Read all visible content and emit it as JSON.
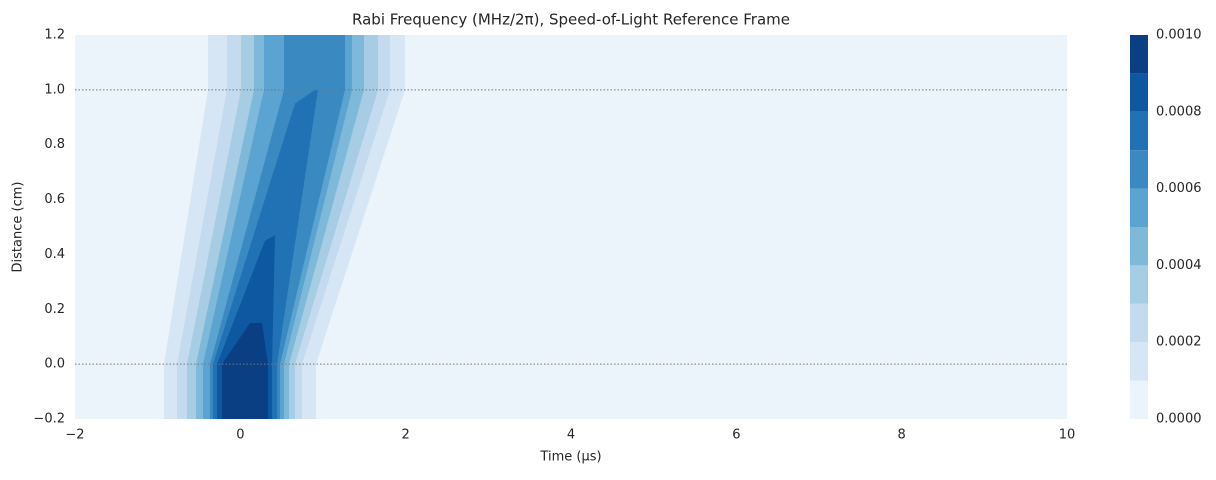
{
  "chart_data": {
    "type": "contour",
    "title": "Rabi Frequency (MHz/2π), Speed-of-Light Reference Frame",
    "xlabel": "Time (μs)",
    "ylabel": "Distance (cm)",
    "xlim": [
      -2,
      10
    ],
    "ylim": [
      -0.2,
      1.2
    ],
    "xticks": [
      {
        "value": -2,
        "label": "−2"
      },
      0,
      2,
      4,
      6,
      8,
      10
    ],
    "yticks": [
      {
        "value": -0.2,
        "label": "−0.2"
      },
      {
        "value": 0,
        "label": "0.0"
      },
      0.2,
      0.4,
      0.6,
      0.8,
      {
        "value": 1,
        "label": "1.0"
      },
      1.2
    ],
    "levels": [
      0,
      0.0001,
      0.0002,
      0.0003,
      0.0004,
      0.0005,
      0.0006,
      0.0007,
      0.0008,
      0.0009,
      0.001
    ],
    "colors": [
      "#ebf3fb",
      "#d6e6f4",
      "#c4daee",
      "#a6cde3",
      "#7fb9da",
      "#5ba3d0",
      "#3a8ac1",
      "#2171b5",
      "#0d58a1",
      "#0a3f84"
    ],
    "regions": [
      [
        [
          -0.923,
          -0.2
        ],
        [
          -0.923,
          0
        ],
        [
          -0.391,
          1
        ],
        [
          -0.391,
          1.2
        ],
        [
          1.992,
          1.2
        ],
        [
          1.992,
          1
        ],
        [
          0.915,
          0
        ],
        [
          0.915,
          -0.2
        ]
      ],
      [
        [
          -0.766,
          -0.2
        ],
        [
          -0.766,
          0
        ],
        [
          -0.161,
          1
        ],
        [
          -0.161,
          1.2
        ],
        [
          1.81,
          1.2
        ],
        [
          1.81,
          1
        ],
        [
          0.746,
          0
        ],
        [
          0.746,
          -0.2
        ]
      ],
      [
        [
          -0.645,
          -0.2
        ],
        [
          -0.645,
          0
        ],
        [
          0.008,
          1
        ],
        [
          0.008,
          1.2
        ],
        [
          1.665,
          1.2
        ],
        [
          1.665,
          1
        ],
        [
          0.661,
          0
        ],
        [
          0.661,
          -0.2
        ]
      ],
      [
        [
          -0.536,
          -0.2
        ],
        [
          -0.536,
          0
        ],
        [
          0.165,
          1
        ],
        [
          0.165,
          1.2
        ],
        [
          1.496,
          1.2
        ],
        [
          1.496,
          1
        ],
        [
          0.589,
          0
        ],
        [
          0.589,
          -0.2
        ]
      ],
      [
        [
          -0.452,
          -0.2
        ],
        [
          -0.452,
          0
        ],
        [
          0.286,
          1
        ],
        [
          0.286,
          1.2
        ],
        [
          1.351,
          1.2
        ],
        [
          1.351,
          1
        ],
        [
          0.528,
          0
        ],
        [
          0.528,
          -0.2
        ]
      ],
      [
        [
          -0.367,
          -0.2
        ],
        [
          -0.367,
          0
        ],
        [
          0.528,
          1
        ],
        [
          0.528,
          1.2
        ],
        [
          1.266,
          1.2
        ],
        [
          1.266,
          1
        ],
        [
          0.48,
          0
        ],
        [
          0.48,
          -0.2
        ]
      ],
      [
        [
          -0.331,
          -0.2
        ],
        [
          -0.331,
          0
        ],
        [
          0.661,
          0.95
        ],
        [
          0.903,
          1
        ],
        [
          0.939,
          1
        ],
        [
          0.444,
          0
        ],
        [
          0.444,
          -0.2
        ]
      ],
      [
        [
          -0.282,
          -0.2
        ],
        [
          -0.282,
          0
        ],
        [
          0.298,
          0.45
        ],
        [
          0.419,
          0.47
        ],
        [
          0.383,
          0
        ],
        [
          0.383,
          -0.2
        ]
      ],
      [
        [
          -0.222,
          -0.2
        ],
        [
          -0.222,
          0
        ],
        [
          0.117,
          0.15
        ],
        [
          0.262,
          0.15
        ],
        [
          0.335,
          0
        ],
        [
          0.335,
          -0.2
        ]
      ]
    ],
    "hlines": [
      0,
      1
    ]
  }
}
